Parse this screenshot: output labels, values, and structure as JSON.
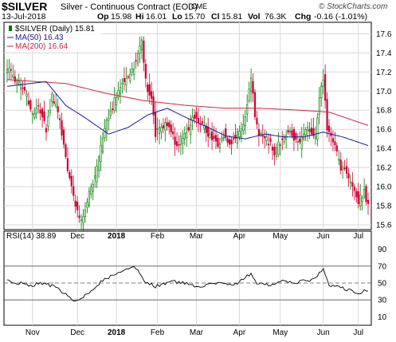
{
  "header": {
    "symbol": "$SILVER",
    "name": "Silver - Continuous Contract (EOD)",
    "exchange": "CME",
    "brand": "© StockCharts.com",
    "date": "13-Jul-2018",
    "open_label": "Op",
    "open": "15.98",
    "high_label": "Hi",
    "high": "16.01",
    "low_label": "Lo",
    "low": "15.70",
    "close_label": "Cl",
    "close": "15.81",
    "vol_label": "Vol",
    "volume": "76.3K",
    "chg_label": "Chg",
    "change": "-0.16 (-1.01%)"
  },
  "colors": {
    "up": "#007a00",
    "down": "#cc0033",
    "ma50": "#1a1a99",
    "ma200": "#cc2244",
    "rsi": "#000000",
    "grid": "#d8d8d8"
  },
  "chart_data": [
    {
      "type": "candlestick",
      "panel": "price",
      "legend": [
        {
          "label": "$SILVER (Daily) 15.81",
          "icon": "candle-icon"
        },
        {
          "label": "MA(50) 16.43",
          "color": "#1a1a99"
        },
        {
          "label": "MA(200) 16.64",
          "color": "#cc2244"
        }
      ],
      "x_ticks": [
        "Nov",
        "Dec",
        "2018",
        "Feb",
        "Mar",
        "Apr",
        "May",
        "Jun",
        "Jul"
      ],
      "y_ticks": [
        "17.6",
        "17.4",
        "17.2",
        "17.0",
        "16.8",
        "16.6",
        "16.4",
        "16.2",
        "16.0",
        "15.8",
        "15.6"
      ],
      "ylim": [
        15.55,
        17.72
      ],
      "close_anchors": [
        [
          0,
          17.25
        ],
        [
          5,
          17.1
        ],
        [
          10,
          16.95
        ],
        [
          13,
          16.75
        ],
        [
          16,
          16.85
        ],
        [
          20,
          16.6
        ],
        [
          23,
          16.95
        ],
        [
          27,
          16.7
        ],
        [
          30,
          16.3
        ],
        [
          33,
          16.0
        ],
        [
          36,
          15.72
        ],
        [
          38,
          15.66
        ],
        [
          41,
          15.85
        ],
        [
          45,
          16.1
        ],
        [
          48,
          16.4
        ],
        [
          52,
          16.75
        ],
        [
          55,
          16.9
        ],
        [
          58,
          17.05
        ],
        [
          62,
          17.15
        ],
        [
          66,
          17.3
        ],
        [
          69,
          17.55
        ],
        [
          71,
          17.1
        ],
        [
          74,
          16.9
        ],
        [
          76,
          16.55
        ],
        [
          79,
          16.6
        ],
        [
          82,
          16.65
        ],
        [
          85,
          16.55
        ],
        [
          87,
          16.4
        ],
        [
          89,
          16.5
        ],
        [
          93,
          16.6
        ],
        [
          96,
          16.75
        ],
        [
          98,
          16.7
        ],
        [
          100,
          16.65
        ],
        [
          103,
          16.55
        ],
        [
          106,
          16.5
        ],
        [
          108,
          16.4
        ],
        [
          111,
          16.55
        ],
        [
          114,
          16.45
        ],
        [
          117,
          16.5
        ],
        [
          120,
          16.6
        ],
        [
          123,
          16.85
        ],
        [
          125,
          17.15
        ],
        [
          127,
          16.75
        ],
        [
          129,
          16.55
        ],
        [
          132,
          16.5
        ],
        [
          135,
          16.45
        ],
        [
          137,
          16.3
        ],
        [
          139,
          16.45
        ],
        [
          142,
          16.5
        ],
        [
          145,
          16.6
        ],
        [
          147,
          16.5
        ],
        [
          150,
          16.45
        ],
        [
          153,
          16.6
        ],
        [
          156,
          16.55
        ],
        [
          158,
          16.5
        ],
        [
          160,
          16.9
        ],
        [
          162,
          17.15
        ],
        [
          164,
          16.6
        ],
        [
          166,
          16.55
        ],
        [
          168,
          16.4
        ],
        [
          171,
          16.2
        ],
        [
          174,
          16.15
        ],
        [
          177,
          16.0
        ],
        [
          180,
          15.85
        ],
        [
          183,
          15.95
        ],
        [
          185,
          15.81
        ]
      ],
      "ma50_anchors": [
        [
          0,
          17.05
        ],
        [
          20,
          17.1
        ],
        [
          30,
          16.85
        ],
        [
          40,
          16.72
        ],
        [
          52,
          16.55
        ],
        [
          62,
          16.62
        ],
        [
          72,
          16.75
        ],
        [
          82,
          16.82
        ],
        [
          92,
          16.72
        ],
        [
          102,
          16.63
        ],
        [
          112,
          16.53
        ],
        [
          122,
          16.5
        ],
        [
          132,
          16.55
        ],
        [
          142,
          16.52
        ],
        [
          152,
          16.52
        ],
        [
          162,
          16.57
        ],
        [
          172,
          16.52
        ],
        [
          185,
          16.43
        ]
      ],
      "ma200_anchors": [
        [
          0,
          17.12
        ],
        [
          30,
          17.08
        ],
        [
          50,
          16.98
        ],
        [
          70,
          16.9
        ],
        [
          92,
          16.85
        ],
        [
          112,
          16.82
        ],
        [
          130,
          16.82
        ],
        [
          150,
          16.8
        ],
        [
          165,
          16.78
        ],
        [
          185,
          16.64
        ]
      ]
    },
    {
      "type": "line",
      "panel": "rsi",
      "legend": "RSI(14) 38.89",
      "x_ticks": [
        "Nov",
        "Dec",
        "2018",
        "Feb",
        "Mar",
        "Apr",
        "May",
        "Jun",
        "Jul"
      ],
      "y_ticks": [
        "90",
        "70",
        "50",
        "30",
        "10"
      ],
      "ylim": [
        0,
        100
      ],
      "reference_lines": [
        30,
        50,
        70
      ],
      "anchors": [
        [
          0,
          52
        ],
        [
          6,
          50
        ],
        [
          12,
          47
        ],
        [
          18,
          50
        ],
        [
          24,
          46
        ],
        [
          30,
          36
        ],
        [
          35,
          28
        ],
        [
          38,
          30
        ],
        [
          43,
          42
        ],
        [
          50,
          55
        ],
        [
          56,
          60
        ],
        [
          62,
          66
        ],
        [
          66,
          68
        ],
        [
          70,
          52
        ],
        [
          76,
          46
        ],
        [
          84,
          52
        ],
        [
          90,
          50
        ],
        [
          98,
          46
        ],
        [
          104,
          49
        ],
        [
          110,
          51
        ],
        [
          116,
          47
        ],
        [
          122,
          56
        ],
        [
          125,
          62
        ],
        [
          128,
          50
        ],
        [
          134,
          47
        ],
        [
          140,
          52
        ],
        [
          146,
          50
        ],
        [
          152,
          52
        ],
        [
          158,
          55
        ],
        [
          162,
          67
        ],
        [
          165,
          48
        ],
        [
          170,
          45
        ],
        [
          176,
          41
        ],
        [
          180,
          36
        ],
        [
          183,
          42
        ],
        [
          185,
          38.89
        ]
      ]
    }
  ]
}
